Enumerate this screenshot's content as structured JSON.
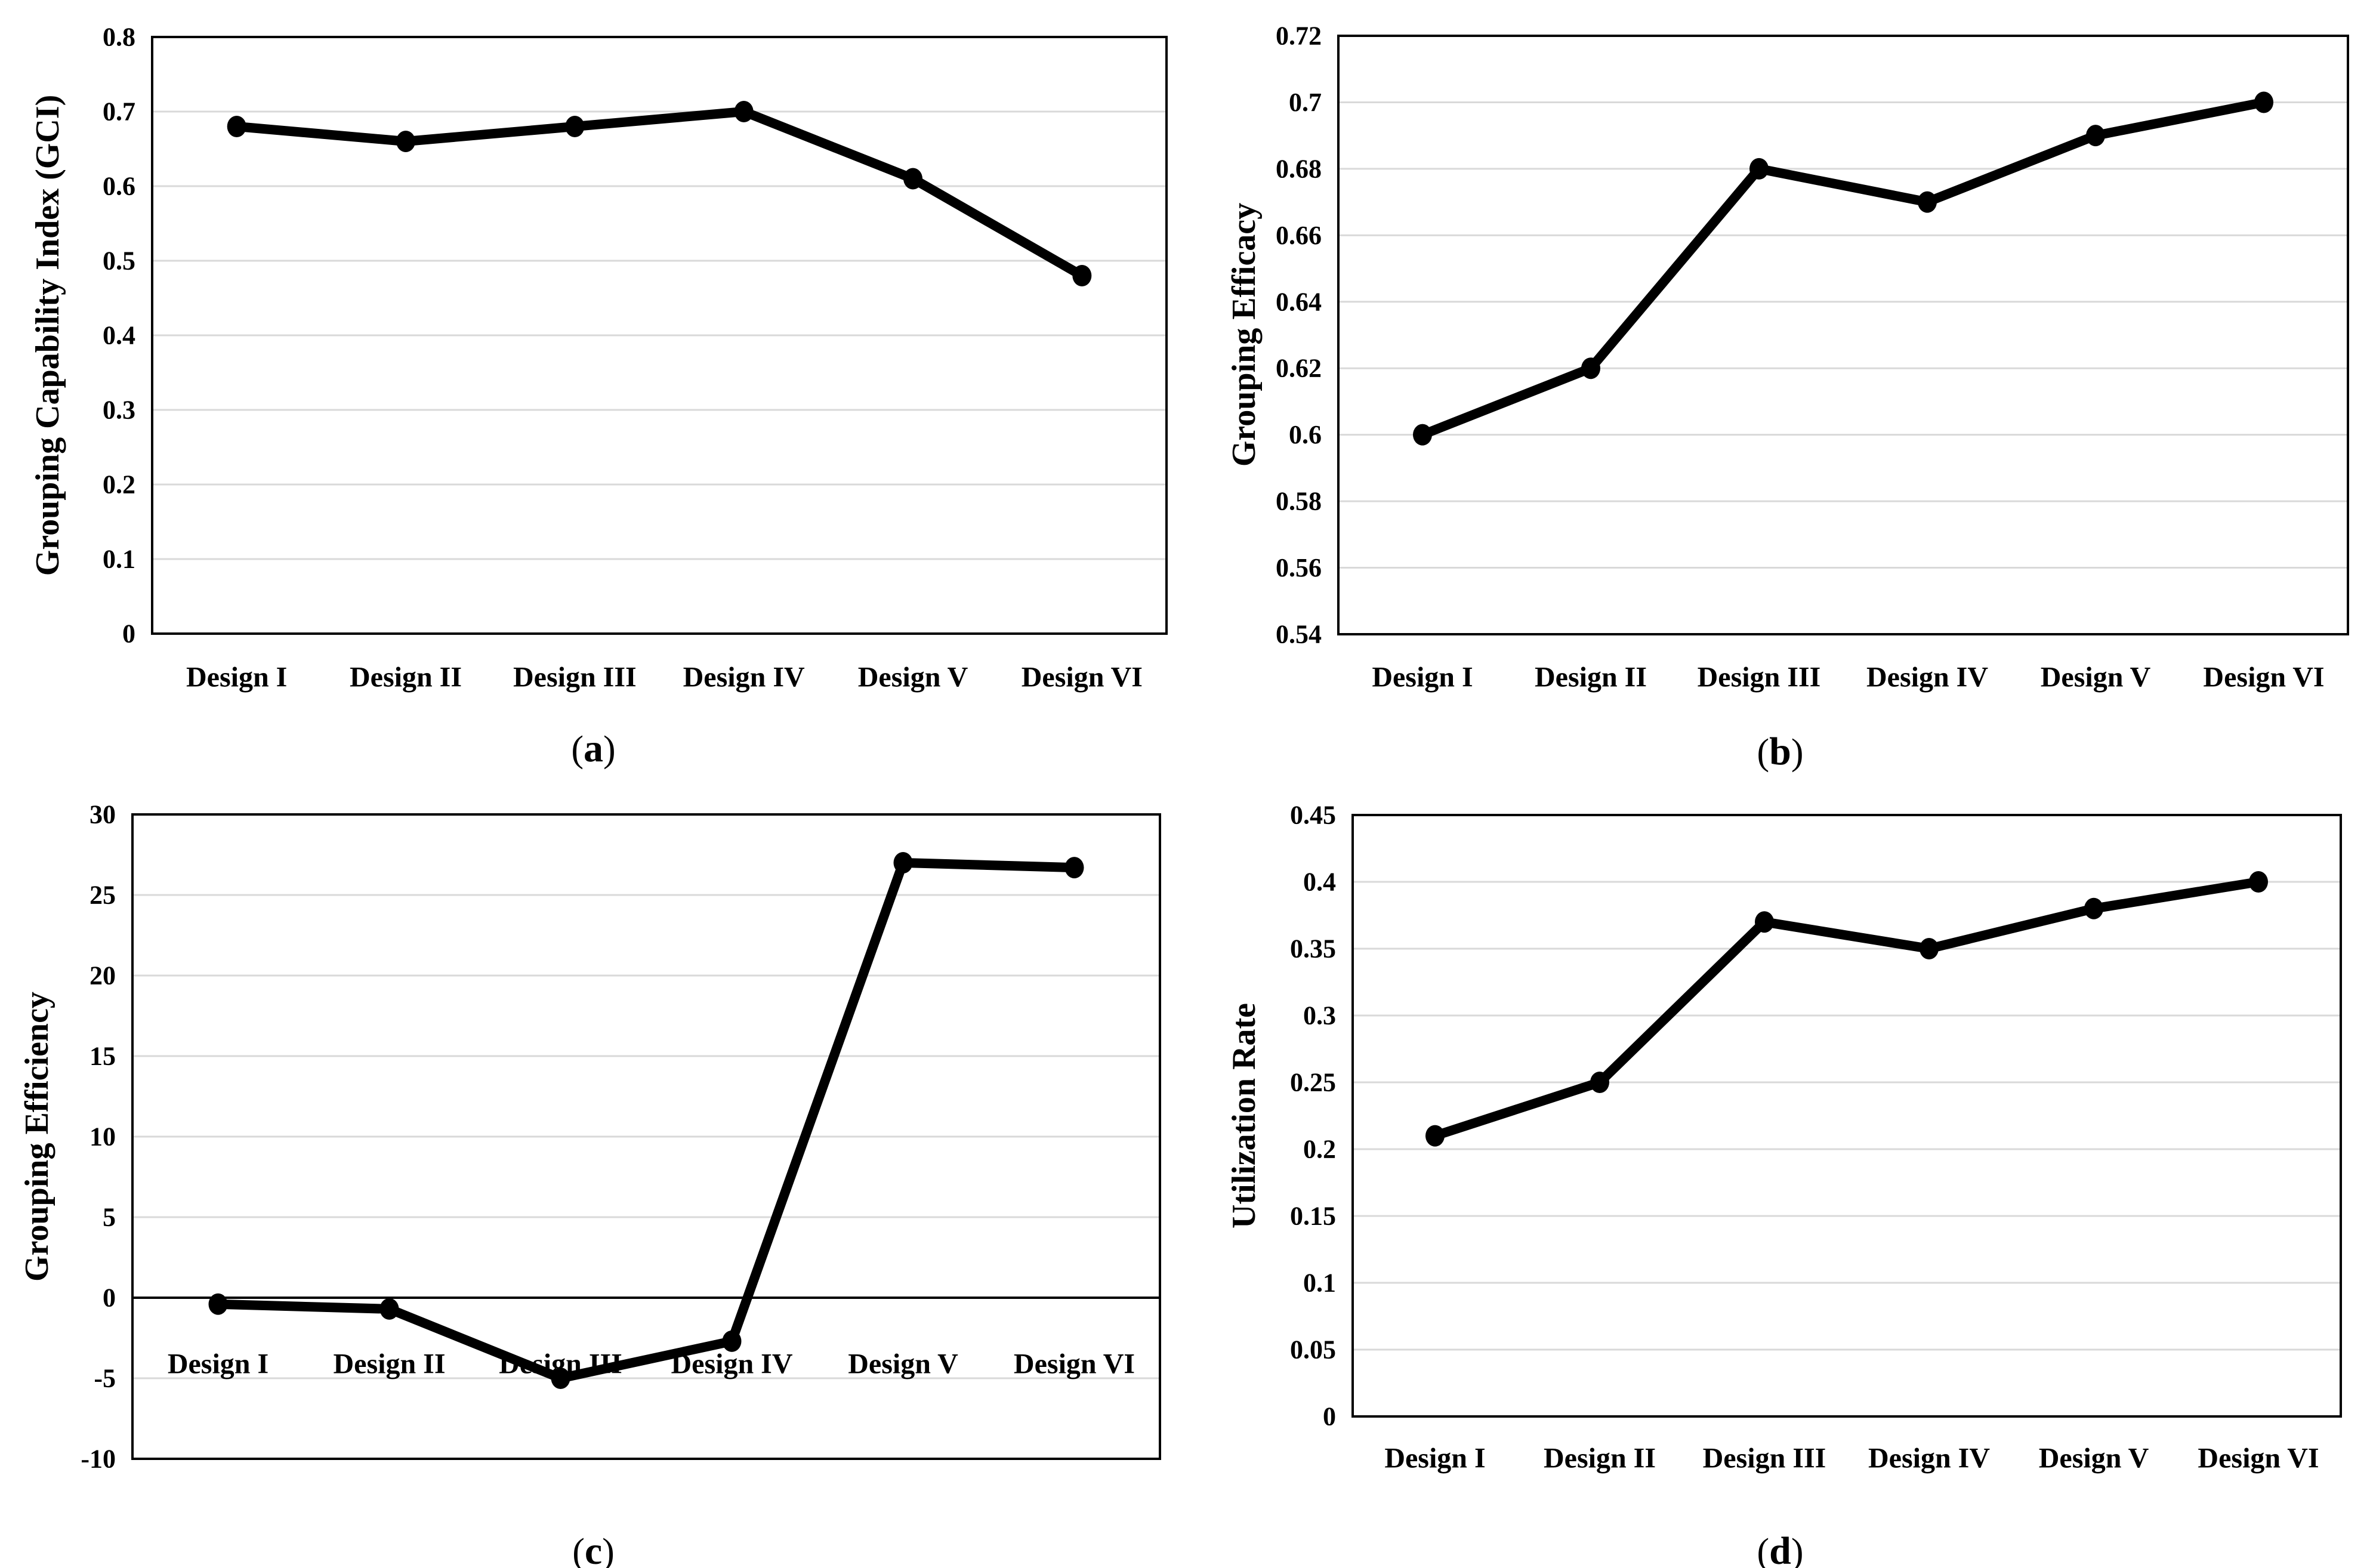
{
  "figure": {
    "layout": "2x2 grid of line charts",
    "background": "#ffffff",
    "caption_parens": {
      "open": "(",
      "close": ")"
    }
  },
  "colors": {
    "line": "#000000",
    "marker": "#000000",
    "grid": "#d9d9d9",
    "border": "#000000",
    "zero_axis": "#000000",
    "text": "#000000"
  },
  "chart_data": [
    {
      "id": "a",
      "type": "line",
      "title": "",
      "caption_letter": "a",
      "ylabel": "Grouping Capability Index (GCI)",
      "xlabel": "",
      "categories": [
        "Design I",
        "Design II",
        "Design III",
        "Design IV",
        "Design V",
        "Design VI"
      ],
      "values": [
        0.68,
        0.66,
        0.68,
        0.7,
        0.61,
        0.48
      ],
      "y_ticks": [
        "0",
        "0.1",
        "0.2",
        "0.3",
        "0.4",
        "0.5",
        "0.6",
        "0.7",
        "0.8"
      ],
      "ylim": [
        0,
        0.8
      ],
      "grid": true,
      "legend": false,
      "marker": "filled-circle"
    },
    {
      "id": "b",
      "type": "line",
      "title": "",
      "caption_letter": "b",
      "ylabel": "Grouping Efficacy",
      "xlabel": "",
      "categories": [
        "Design I",
        "Design II",
        "Design III",
        "Design IV",
        "Design V",
        "Design VI"
      ],
      "values": [
        0.6,
        0.62,
        0.68,
        0.67,
        0.69,
        0.7
      ],
      "y_ticks": [
        "0.54",
        "0.56",
        "0.58",
        "0.6",
        "0.62",
        "0.64",
        "0.66",
        "0.68",
        "0.7",
        "0.72"
      ],
      "ylim": [
        0.54,
        0.72
      ],
      "grid": true,
      "legend": false,
      "marker": "filled-circle"
    },
    {
      "id": "c",
      "type": "line",
      "title": "",
      "caption_letter": "c",
      "ylabel": "Grouping Efficiency",
      "xlabel": "",
      "categories": [
        "Design I",
        "Design II",
        "Design III",
        "Design IV",
        "Design V",
        "Design VI"
      ],
      "values": [
        -0.4,
        -0.7,
        -5.0,
        -2.7,
        27.0,
        26.7
      ],
      "y_ticks": [
        "-10",
        "-5",
        "0",
        "5",
        "10",
        "15",
        "20",
        "25",
        "30"
      ],
      "ylim": [
        -10,
        30
      ],
      "grid": true,
      "legend": false,
      "marker": "filled-circle",
      "zero_axis_line": true,
      "category_labels_below_zero_line": true
    },
    {
      "id": "d",
      "type": "line",
      "title": "",
      "caption_letter": "d",
      "ylabel": "Utilization  Rate",
      "xlabel": "",
      "categories": [
        "Design I",
        "Design II",
        "Design III",
        "Design IV",
        "Design V",
        "Design VI"
      ],
      "values": [
        0.21,
        0.25,
        0.37,
        0.35,
        0.38,
        0.4
      ],
      "y_ticks": [
        "0",
        "0.05",
        "0.1",
        "0.15",
        "0.2",
        "0.25",
        "0.3",
        "0.35",
        "0.4",
        "0.45"
      ],
      "ylim": [
        0,
        0.45
      ],
      "grid": true,
      "legend": false,
      "marker": "filled-circle"
    }
  ]
}
